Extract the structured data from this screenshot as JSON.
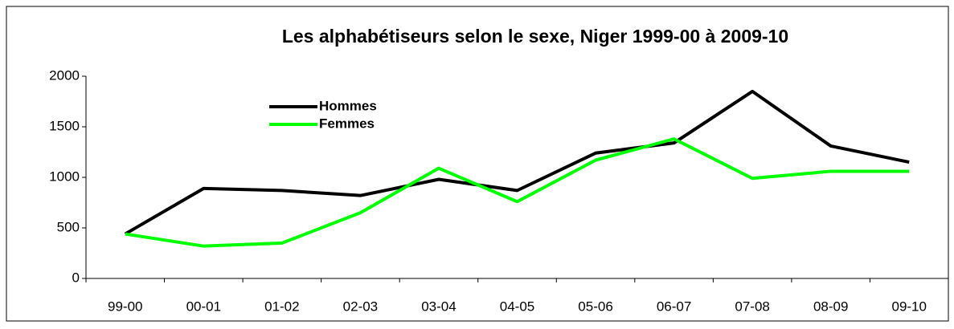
{
  "chart_data": {
    "type": "line",
    "title": "Les alphabétiseurs selon le sexe, Niger 1999-00 à 2009-10",
    "categories": [
      "99-00",
      "00-01",
      "01-02",
      "02-03",
      "03-04",
      "04-05",
      "05-06",
      "06-07",
      "07-08",
      "08-09",
      "09-10"
    ],
    "series": [
      {
        "name": "Hommes",
        "color": "#000000",
        "values": [
          440,
          890,
          870,
          820,
          980,
          870,
          1240,
          1340,
          1850,
          1310,
          1150
        ]
      },
      {
        "name": "Femmes",
        "color": "#00ff00",
        "values": [
          440,
          320,
          350,
          650,
          1090,
          760,
          1170,
          1380,
          990,
          1060,
          1060
        ]
      }
    ],
    "ylim": [
      0,
      2000
    ],
    "yticks": [
      0,
      500,
      1000,
      1500,
      2000
    ],
    "grid": false,
    "legend": "upper left"
  }
}
